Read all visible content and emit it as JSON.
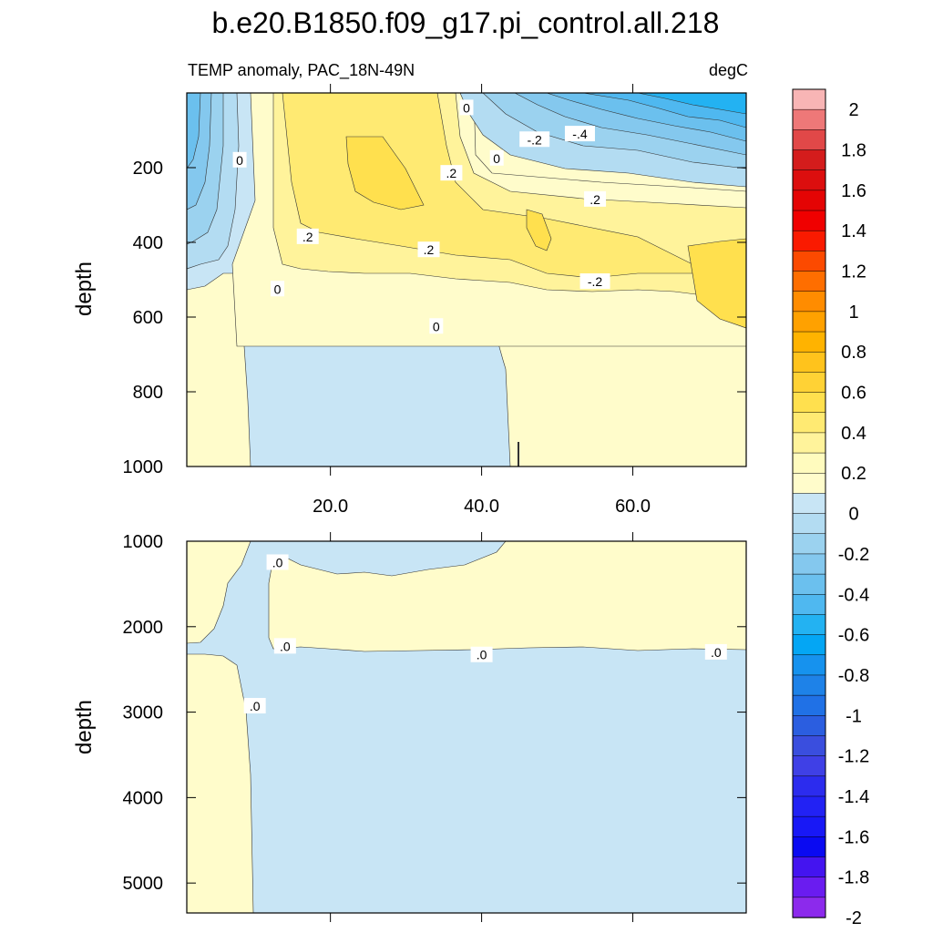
{
  "title": "b.e20.B1850.f09_g17.pi_control.all.218",
  "subtitle_left": "TEMP anomaly, PAC_18N-49N",
  "subtitle_right": "degC",
  "chart_data": [
    {
      "type": "heatmap",
      "panel": "upper",
      "ylabel": "depth",
      "xlim": [
        1,
        75
      ],
      "ylim": [
        1000,
        0
      ],
      "x_ticks": [
        20,
        40,
        60
      ],
      "x_tick_labels": [
        "20.0",
        "40.0",
        "60.0"
      ],
      "y_ticks": [
        200,
        400,
        600,
        800,
        1000
      ],
      "y_tick_labels": [
        "200",
        "400",
        "600",
        "800",
        "1000"
      ],
      "contour_labels": [
        {
          "text": "0",
          "x": 8,
          "y": 180
        },
        {
          "text": ".2",
          "x": 17,
          "y": 385
        },
        {
          "text": "0",
          "x": 13,
          "y": 525
        },
        {
          "text": ".2",
          "x": 33,
          "y": 420
        },
        {
          "text": "0",
          "x": 34,
          "y": 625
        },
        {
          "text": ".2",
          "x": 36,
          "y": 215
        },
        {
          "text": "0",
          "x": 38,
          "y": 40
        },
        {
          "text": "0",
          "x": 42,
          "y": 175
        },
        {
          "text": "-.2",
          "x": 47,
          "y": 125
        },
        {
          "text": "-.4",
          "x": 53,
          "y": 110
        },
        {
          "text": ".2",
          "x": 55,
          "y": 285
        },
        {
          "text": "-.2",
          "x": 55,
          "y": 505
        }
      ]
    },
    {
      "type": "heatmap",
      "panel": "lower",
      "ylabel": "depth",
      "xlim": [
        1,
        75
      ],
      "ylim": [
        5350,
        1000
      ],
      "y_ticks": [
        1000,
        2000,
        3000,
        4000,
        5000
      ],
      "y_tick_labels": [
        "1000",
        "2000",
        "3000",
        "4000",
        "5000"
      ],
      "contour_labels": [
        {
          "text": ".0",
          "x": 13,
          "y": 1250
        },
        {
          "text": ".0",
          "x": 14,
          "y": 2230
        },
        {
          "text": ".0",
          "x": 10,
          "y": 2930
        },
        {
          "text": ".0",
          "x": 40,
          "y": 2330
        },
        {
          "text": ".0",
          "x": 71,
          "y": 2300
        }
      ]
    }
  ],
  "colorbar": {
    "unit": "degC",
    "levels": [
      "2",
      "1.8",
      "1.6",
      "1.4",
      "1.2",
      "1",
      "0.8",
      "0.6",
      "0.4",
      "0.2",
      "0",
      "-0.2",
      "-0.4",
      "-0.6",
      "-0.8",
      "-1",
      "-1.2",
      "-1.4",
      "-1.6",
      "-1.8",
      "-2"
    ],
    "colors": [
      "#F8B5B5",
      "#EE7878",
      "#E14848",
      "#D41C1C",
      "#DC0E0E",
      "#E40404",
      "#F00000",
      "#FA1A00",
      "#FC4A00",
      "#FE6E00",
      "#FF8C00",
      "#FFA100",
      "#FFB300",
      "#FFC31C",
      "#FFD235",
      "#FFE04E",
      "#FFEA72",
      "#FFF39B",
      "#FFFBBE",
      "#FFFCCB",
      "#C8E5F5",
      "#B3DCF2",
      "#9BD2EF",
      "#84C8EE",
      "#6BC0EE",
      "#4FB8F0",
      "#23B2F2",
      "#04A6F4",
      "#1692EE",
      "#1E82E8",
      "#2071E6",
      "#2B5EE0",
      "#3A4EDE",
      "#3F40E6",
      "#2C2CEE",
      "#2222F4",
      "#1818F6",
      "#0A0AF2",
      "#4414F0",
      "#6A1CF0",
      "#8C2AEC"
    ]
  },
  "colors": {
    "zero_pos": "#FFFCCB",
    "zero_neg": "#C8E5F5",
    "pos_1": "#FFF39B",
    "pos_2": "#FFEA72",
    "pos_3": "#FFE04E",
    "pos_4": "#FFD235",
    "neg_1": "#B3DCF2",
    "neg_2": "#9BD2EF",
    "neg_3": "#84C8EE",
    "neg_4": "#6BC0EE",
    "neg_5": "#4FB8F0",
    "neg_6": "#23B2F2"
  }
}
